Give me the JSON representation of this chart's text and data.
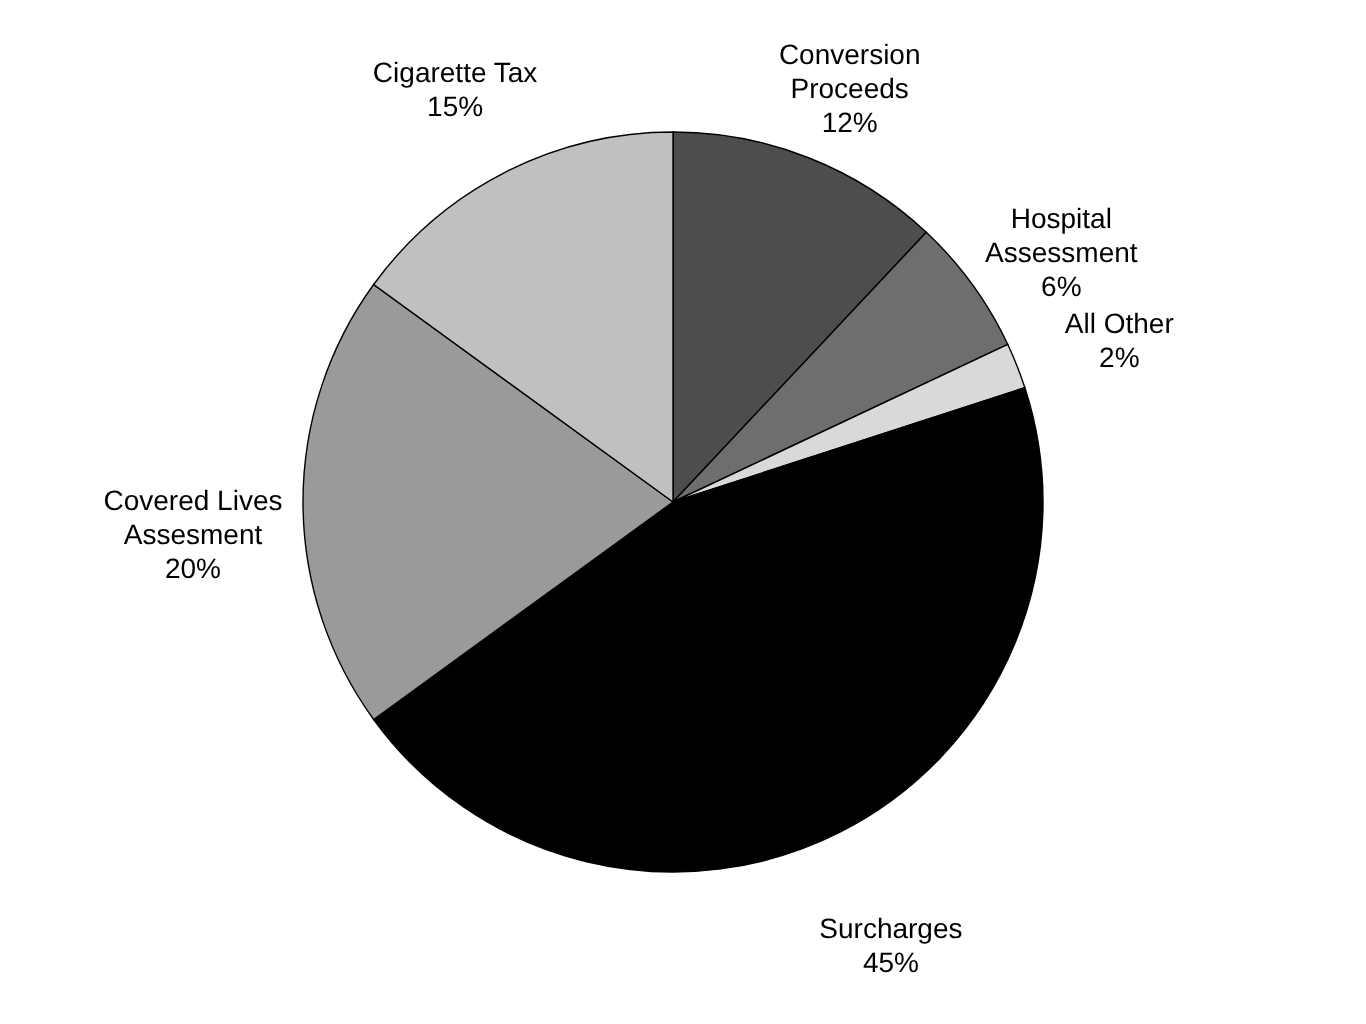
{
  "chart_data": {
    "type": "pie",
    "categories": [
      "Conversion Proceeds",
      "Hospital Assessment",
      "All Other",
      "Surcharges",
      "Covered Lives Assesment",
      "Cigarette Tax"
    ],
    "values": [
      12,
      6,
      2,
      45,
      20,
      15
    ],
    "value_labels": [
      "12%",
      "6%",
      "2%",
      "45%",
      "20%",
      "15%"
    ],
    "colors": [
      "#4d4d4d",
      "#6e6e6e",
      "#d9d9d9",
      "#000000",
      "#9a9a9a",
      "#c0c0c0"
    ],
    "legend": false
  }
}
